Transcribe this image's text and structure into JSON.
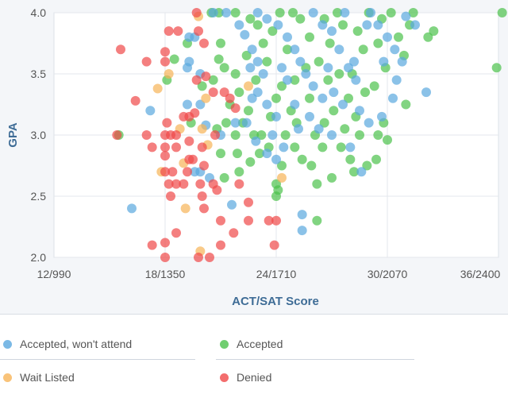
{
  "chart_data": {
    "type": "scatter",
    "xlabel": "ACT/SAT Score",
    "ylabel": "GPA",
    "xlim": [
      12,
      36
    ],
    "ylim": [
      2.0,
      4.0
    ],
    "x_ticks": [
      {
        "v": 12,
        "label": "12/990"
      },
      {
        "v": 18,
        "label": "18/1350"
      },
      {
        "v": 24,
        "label": "24/1710"
      },
      {
        "v": 30,
        "label": "30/2070"
      },
      {
        "v": 36,
        "label": "36/2400"
      }
    ],
    "y_ticks": [
      {
        "v": 2.0,
        "label": "2.0"
      },
      {
        "v": 2.5,
        "label": "2.5"
      },
      {
        "v": 3.0,
        "label": "3.0"
      },
      {
        "v": 3.5,
        "label": "3.5"
      },
      {
        "v": 4.0,
        "label": "4.0"
      }
    ],
    "grid": true,
    "legend_position": "bottom",
    "series": [
      {
        "name": "Accepted",
        "color": "#4cc24c",
        "points": [
          [
            15.5,
            3.0
          ],
          [
            18.1,
            3.45
          ],
          [
            18.5,
            3.62
          ],
          [
            19.2,
            3.75
          ],
          [
            20.5,
            4.0
          ],
          [
            20.9,
            4.0
          ],
          [
            21.8,
            4.0
          ],
          [
            20.0,
            3.4
          ],
          [
            19.4,
            3.1
          ],
          [
            20.8,
            3.05
          ],
          [
            21.3,
            3.1
          ],
          [
            21.2,
            3.55
          ],
          [
            21.8,
            3.5
          ],
          [
            20.9,
            3.62
          ],
          [
            22.5,
            3.2
          ],
          [
            22.2,
            3.1
          ],
          [
            21.8,
            3.0
          ],
          [
            21.0,
            2.85
          ],
          [
            21.9,
            2.85
          ],
          [
            21.2,
            2.65
          ],
          [
            22.6,
            2.78
          ],
          [
            23.1,
            2.85
          ],
          [
            22.0,
            2.7
          ],
          [
            23.6,
            2.9
          ],
          [
            24.0,
            2.6
          ],
          [
            24.1,
            2.55
          ],
          [
            24.0,
            2.5
          ],
          [
            23.2,
            3.0
          ],
          [
            22.9,
            3.45
          ],
          [
            23.3,
            3.75
          ],
          [
            23.8,
            3.85
          ],
          [
            24.2,
            4.0
          ],
          [
            24.9,
            4.0
          ],
          [
            25.3,
            3.95
          ],
          [
            24.6,
            3.7
          ],
          [
            24.3,
            3.4
          ],
          [
            24.0,
            3.3
          ],
          [
            24.8,
            3.2
          ],
          [
            25.1,
            3.1
          ],
          [
            24.5,
            3.0
          ],
          [
            25.0,
            2.9
          ],
          [
            25.4,
            2.8
          ],
          [
            25.9,
            2.75
          ],
          [
            26.2,
            2.6
          ],
          [
            26.2,
            2.3
          ],
          [
            26.5,
            2.9
          ],
          [
            26.1,
            3.0
          ],
          [
            25.8,
            3.3
          ],
          [
            26.3,
            3.6
          ],
          [
            25.8,
            3.8
          ],
          [
            26.6,
            3.95
          ],
          [
            27.3,
            4.0
          ],
          [
            27.6,
            3.9
          ],
          [
            26.9,
            3.75
          ],
          [
            27.4,
            3.5
          ],
          [
            27.1,
            3.2
          ],
          [
            27.7,
            3.05
          ],
          [
            27.5,
            2.9
          ],
          [
            28.0,
            2.8
          ],
          [
            28.2,
            2.7
          ],
          [
            28.9,
            2.75
          ],
          [
            29.4,
            2.8
          ],
          [
            28.5,
            3.0
          ],
          [
            28.8,
            3.35
          ],
          [
            28.1,
            3.5
          ],
          [
            28.7,
            3.7
          ],
          [
            28.4,
            3.85
          ],
          [
            29.0,
            4.0
          ],
          [
            29.7,
            3.95
          ],
          [
            29.5,
            3.75
          ],
          [
            29.9,
            3.55
          ],
          [
            29.3,
            3.4
          ],
          [
            29.8,
            3.1
          ],
          [
            30.0,
            2.96
          ],
          [
            31.0,
            3.25
          ],
          [
            30.6,
            3.8
          ],
          [
            30.2,
            4.0
          ],
          [
            31.2,
            3.9
          ],
          [
            31.4,
            4.0
          ],
          [
            30.9,
            3.65
          ],
          [
            32.2,
            3.8
          ],
          [
            32.5,
            3.85
          ],
          [
            36.2,
            4.0
          ],
          [
            35.9,
            3.55
          ],
          [
            29.5,
            3.0
          ],
          [
            23.5,
            3.6
          ],
          [
            22.4,
            3.65
          ],
          [
            22.0,
            3.35
          ],
          [
            21.5,
            3.25
          ],
          [
            20.6,
            3.45
          ],
          [
            21.0,
            3.75
          ],
          [
            25.6,
            3.55
          ],
          [
            26.8,
            3.45
          ],
          [
            27.9,
            3.3
          ],
          [
            28.3,
            3.15
          ],
          [
            23.7,
            3.15
          ],
          [
            22.8,
            3.0
          ],
          [
            24.3,
            2.75
          ],
          [
            27.0,
            2.65
          ],
          [
            26.6,
            3.1
          ],
          [
            25.0,
            3.45
          ],
          [
            23.0,
            3.9
          ],
          [
            22.6,
            3.95
          ]
        ]
      },
      {
        "name": "Accepted, won't attend",
        "color": "#5aa8de",
        "points": [
          [
            16.2,
            2.4
          ],
          [
            17.2,
            3.2
          ],
          [
            19.3,
            3.8
          ],
          [
            19.6,
            3.8
          ],
          [
            19.3,
            3.6
          ],
          [
            19.2,
            3.55
          ],
          [
            19.9,
            3.5
          ],
          [
            19.9,
            3.25
          ],
          [
            19.2,
            3.25
          ],
          [
            20.2,
            3.08
          ],
          [
            21.0,
            3.0
          ],
          [
            19.6,
            2.7
          ],
          [
            19.9,
            2.7
          ],
          [
            20.4,
            2.65
          ],
          [
            21.6,
            2.43
          ],
          [
            20.6,
            4.0
          ],
          [
            21.3,
            4.0
          ],
          [
            22.0,
            3.9
          ],
          [
            22.3,
            3.82
          ],
          [
            22.7,
            3.7
          ],
          [
            23.0,
            3.6
          ],
          [
            22.6,
            3.55
          ],
          [
            23.3,
            3.5
          ],
          [
            23.0,
            3.35
          ],
          [
            22.7,
            3.3
          ],
          [
            23.5,
            3.25
          ],
          [
            21.8,
            3.1
          ],
          [
            22.4,
            3.1
          ],
          [
            23.8,
            3.0
          ],
          [
            22.9,
            2.95
          ],
          [
            23.5,
            2.85
          ],
          [
            24.0,
            2.8
          ],
          [
            24.4,
            2.9
          ],
          [
            23.0,
            4.0
          ],
          [
            23.5,
            3.95
          ],
          [
            24.1,
            3.9
          ],
          [
            24.6,
            3.8
          ],
          [
            25.0,
            3.7
          ],
          [
            25.3,
            3.6
          ],
          [
            24.3,
            3.55
          ],
          [
            25.6,
            3.5
          ],
          [
            26.0,
            3.4
          ],
          [
            26.5,
            3.3
          ],
          [
            25.0,
            3.25
          ],
          [
            25.8,
            3.15
          ],
          [
            26.3,
            3.05
          ],
          [
            27.0,
            3.0
          ],
          [
            25.4,
            2.35
          ],
          [
            25.4,
            2.22
          ],
          [
            26.0,
            4.0
          ],
          [
            26.5,
            3.9
          ],
          [
            27.0,
            3.85
          ],
          [
            27.4,
            3.7
          ],
          [
            27.9,
            3.55
          ],
          [
            28.3,
            3.45
          ],
          [
            27.1,
            3.35
          ],
          [
            27.6,
            3.25
          ],
          [
            28.5,
            3.2
          ],
          [
            29.0,
            3.1
          ],
          [
            28.0,
            2.9
          ],
          [
            28.6,
            2.7
          ],
          [
            29.1,
            4.0
          ],
          [
            29.5,
            3.9
          ],
          [
            30.0,
            3.8
          ],
          [
            30.4,
            3.7
          ],
          [
            29.8,
            3.6
          ],
          [
            30.5,
            3.45
          ],
          [
            29.7,
            3.15
          ],
          [
            30.3,
            3.3
          ],
          [
            31.0,
            3.97
          ],
          [
            31.5,
            3.9
          ],
          [
            32.1,
            3.35
          ],
          [
            30.8,
            3.6
          ],
          [
            24.6,
            3.45
          ],
          [
            24.0,
            3.15
          ],
          [
            25.2,
            3.05
          ],
          [
            28.2,
            3.6
          ],
          [
            28.9,
            3.9
          ],
          [
            27.7,
            4.0
          ],
          [
            26.8,
            3.55
          ]
        ]
      },
      {
        "name": "Wait Listed",
        "color": "#f7b457",
        "points": [
          [
            19.8,
            3.97
          ],
          [
            17.6,
            3.38
          ],
          [
            18.2,
            3.5
          ],
          [
            20.2,
            3.3
          ],
          [
            17.8,
            2.7
          ],
          [
            19.0,
            2.77
          ],
          [
            20.3,
            2.92
          ],
          [
            19.1,
            2.4
          ],
          [
            19.9,
            2.05
          ],
          [
            24.3,
            2.65
          ],
          [
            20.0,
            3.05
          ],
          [
            22.5,
            3.4
          ],
          [
            18.8,
            3.05
          ]
        ]
      },
      {
        "name": "Denied",
        "color": "#f04848",
        "points": [
          [
            19.7,
            4.0
          ],
          [
            18.2,
            3.85
          ],
          [
            18.7,
            3.85
          ],
          [
            19.8,
            3.85
          ],
          [
            20.1,
            3.75
          ],
          [
            15.6,
            3.7
          ],
          [
            18.0,
            3.68
          ],
          [
            17.0,
            3.6
          ],
          [
            18.0,
            3.6
          ],
          [
            16.4,
            3.28
          ],
          [
            19.7,
            3.45
          ],
          [
            20.2,
            3.48
          ],
          [
            20.6,
            3.35
          ],
          [
            21.5,
            3.3
          ],
          [
            21.2,
            3.35
          ],
          [
            19.0,
            3.15
          ],
          [
            19.3,
            3.15
          ],
          [
            19.6,
            3.18
          ],
          [
            21.8,
            3.22
          ],
          [
            15.4,
            3.0
          ],
          [
            17.0,
            3.0
          ],
          [
            18.0,
            3.0
          ],
          [
            18.3,
            3.0
          ],
          [
            18.6,
            3.0
          ],
          [
            18.1,
            3.1
          ],
          [
            17.3,
            2.9
          ],
          [
            18.0,
            2.9
          ],
          [
            18.6,
            2.9
          ],
          [
            19.3,
            2.95
          ],
          [
            20.0,
            2.9
          ],
          [
            20.7,
            3.0
          ],
          [
            18.0,
            2.83
          ],
          [
            19.3,
            2.8
          ],
          [
            19.5,
            2.8
          ],
          [
            20.1,
            2.75
          ],
          [
            18.0,
            2.7
          ],
          [
            18.4,
            2.7
          ],
          [
            19.2,
            2.7
          ],
          [
            18.2,
            2.6
          ],
          [
            18.6,
            2.6
          ],
          [
            19.0,
            2.6
          ],
          [
            19.9,
            2.6
          ],
          [
            20.6,
            2.6
          ],
          [
            18.3,
            2.5
          ],
          [
            20.0,
            2.5
          ],
          [
            20.8,
            2.55
          ],
          [
            20.1,
            2.4
          ],
          [
            22.0,
            2.6
          ],
          [
            22.5,
            2.45
          ],
          [
            17.3,
            2.1
          ],
          [
            18.0,
            2.12
          ],
          [
            18.6,
            2.2
          ],
          [
            18.0,
            2.0
          ],
          [
            19.8,
            2.0
          ],
          [
            20.4,
            2.0
          ],
          [
            21.7,
            2.2
          ],
          [
            21.0,
            2.3
          ],
          [
            22.5,
            2.3
          ],
          [
            23.6,
            2.3
          ],
          [
            24.0,
            2.3
          ],
          [
            23.9,
            2.1
          ],
          [
            21.0,
            2.1
          ]
        ]
      }
    ]
  },
  "legend": [
    {
      "label": "Accepted, won't attend",
      "color": "#5aa8de"
    },
    {
      "label": "Accepted",
      "color": "#4cc24c"
    },
    {
      "label": "Wait Listed",
      "color": "#f7b457"
    },
    {
      "label": "Denied",
      "color": "#f04848"
    }
  ]
}
